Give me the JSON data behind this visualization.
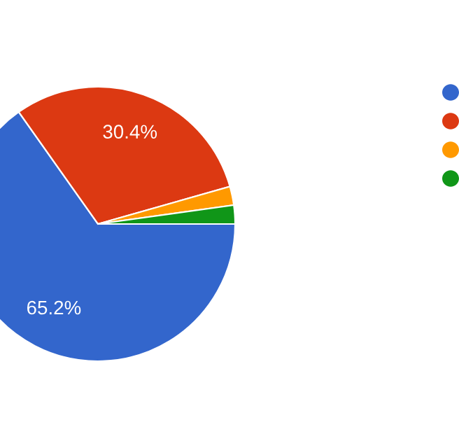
{
  "chart_data": {
    "type": "pie",
    "categories": [
      null,
      null,
      null,
      null
    ],
    "values": [
      65.2,
      30.4,
      2.2,
      2.2
    ],
    "colors": [
      "#3366cc",
      "#dc3912",
      "#ff9900",
      "#109618"
    ],
    "value_labels": [
      "65.2%",
      "30.4%",
      null,
      null
    ]
  }
}
